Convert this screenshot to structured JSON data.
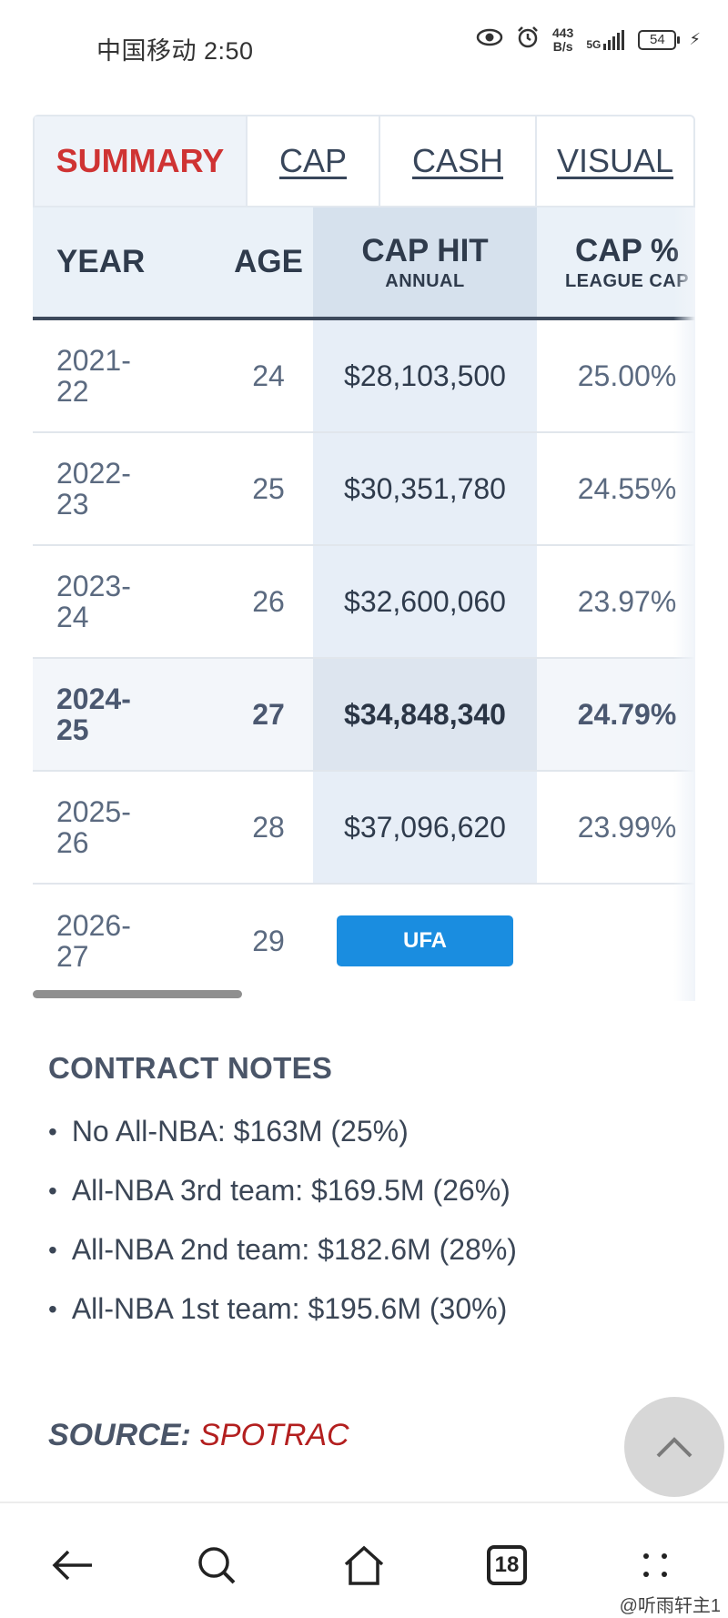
{
  "status_bar": {
    "carrier_time": "中国移动 2:50",
    "net_speed_value": "443",
    "net_speed_unit": "B/s",
    "signal": "5G",
    "battery": "54",
    "icons": [
      "eye-icon",
      "alarm-icon",
      "signal-icon",
      "battery-icon",
      "charging-icon"
    ]
  },
  "tabs": [
    "SUMMARY",
    "CAP",
    "CASH",
    "VISUAL"
  ],
  "table": {
    "headers": {
      "year": "YEAR",
      "age": "AGE",
      "cap_hit": "CAP HIT",
      "cap_hit_sub": "ANNUAL",
      "cap_pct": "CAP %",
      "cap_pct_sub": "LEAGUE CAP"
    },
    "rows": [
      {
        "year_a": "2021-",
        "year_b": "22",
        "age": "24",
        "cap_hit": "$28,103,500",
        "cap_pct": "25.00%"
      },
      {
        "year_a": "2022-",
        "year_b": "23",
        "age": "25",
        "cap_hit": "$30,351,780",
        "cap_pct": "24.55%"
      },
      {
        "year_a": "2023-",
        "year_b": "24",
        "age": "26",
        "cap_hit": "$32,600,060",
        "cap_pct": "23.97%"
      },
      {
        "year_a": "2024-",
        "year_b": "25",
        "age": "27",
        "cap_hit": "$34,848,340",
        "cap_pct": "24.79%"
      },
      {
        "year_a": "2025-",
        "year_b": "26",
        "age": "28",
        "cap_hit": "$37,096,620",
        "cap_pct": "23.99%"
      },
      {
        "year_a": "2026-",
        "year_b": "27",
        "age": "29",
        "badge": "UFA"
      }
    ]
  },
  "contract_notes": {
    "title": "CONTRACT NOTES",
    "items": [
      "No All-NBA: $163M (25%)",
      "All-NBA 3rd team: $169.5M (26%)",
      "All-NBA 2nd team: $182.6M (28%)",
      "All-NBA 1st team: $195.6M (30%)"
    ]
  },
  "source": {
    "label": "SOURCE:",
    "value": "SPOTRAC"
  },
  "bottom_nav": {
    "tab_count": "18",
    "icons": [
      "back-arrow-icon",
      "search-icon",
      "home-icon",
      "tabs-icon",
      "menu-icon"
    ]
  },
  "watermark": "@听雨轩主1",
  "colors": {
    "accent_red": "#cf3333",
    "ufa_blue": "#1a8de0",
    "source_red": "#b31f1f"
  }
}
